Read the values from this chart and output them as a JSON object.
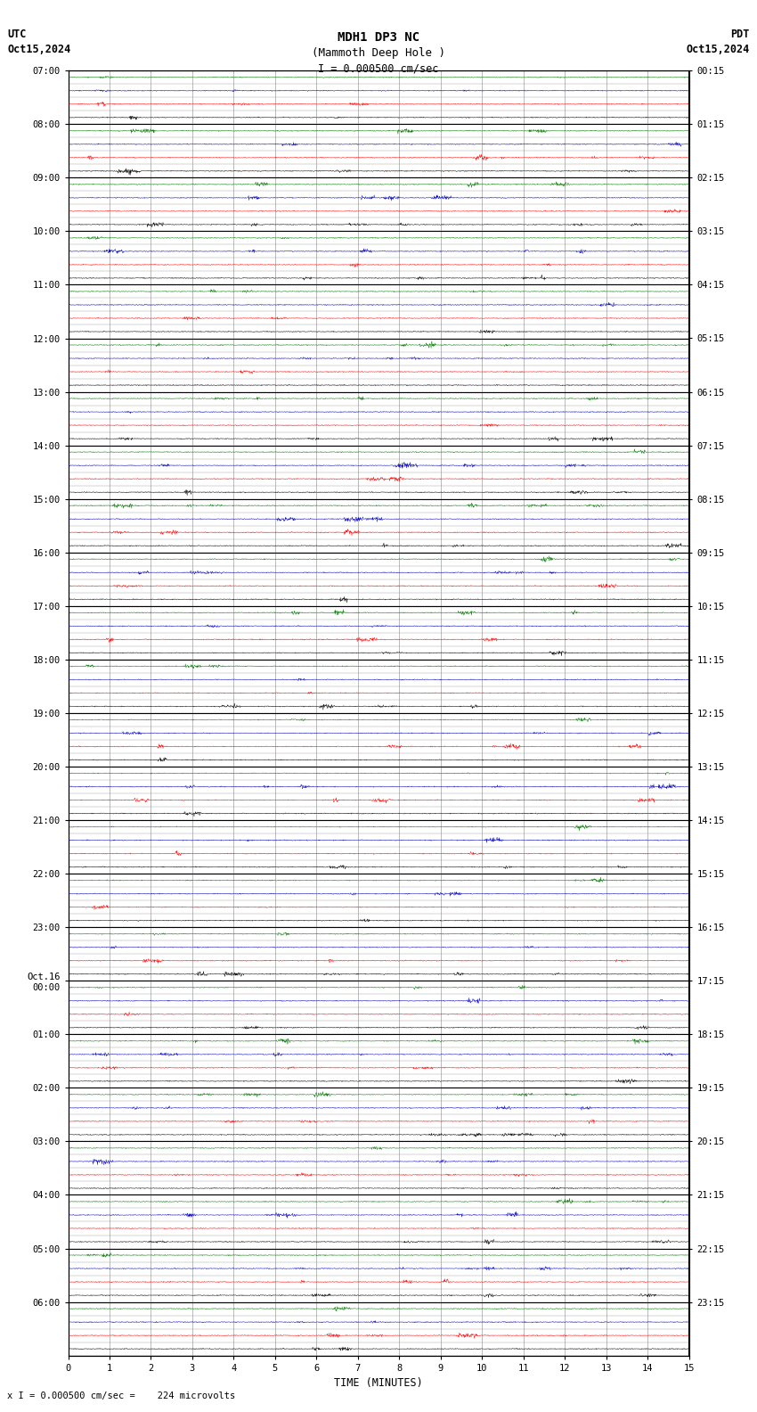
{
  "title_line1": "MDH1 DP3 NC",
  "title_line2": "(Mammoth Deep Hole )",
  "scale_label": "I = 0.000500 cm/sec",
  "left_header": "UTC",
  "left_date": "Oct15,2024",
  "right_header": "PDT",
  "right_date": "Oct15,2024",
  "bottom_label": "TIME (MINUTES)",
  "bottom_note": "x I = 0.000500 cm/sec =    224 microvolts",
  "xmin": 0,
  "xmax": 15,
  "background_color": "#ffffff",
  "grid_color": "#888888",
  "hour_line_color": "#000000",
  "trace_colors": [
    "#000000",
    "#ff0000",
    "#0000bb",
    "#007700"
  ],
  "left_ytick_labels": [
    "07:00",
    "08:00",
    "09:00",
    "10:00",
    "11:00",
    "12:00",
    "13:00",
    "14:00",
    "15:00",
    "16:00",
    "17:00",
    "18:00",
    "19:00",
    "20:00",
    "21:00",
    "22:00",
    "23:00",
    "Oct.16\n00:00",
    "01:00",
    "02:00",
    "03:00",
    "04:00",
    "05:00",
    "06:00"
  ],
  "right_ytick_labels": [
    "00:15",
    "01:15",
    "02:15",
    "03:15",
    "04:15",
    "05:15",
    "06:15",
    "07:15",
    "08:15",
    "09:15",
    "10:15",
    "11:15",
    "12:15",
    "13:15",
    "14:15",
    "15:15",
    "16:15",
    "17:15",
    "18:15",
    "19:15",
    "20:15",
    "21:15",
    "22:15",
    "23:15"
  ],
  "num_hour_blocks": 24,
  "traces_per_hour": 4,
  "total_trace_rows": 96,
  "fig_width": 8.5,
  "fig_height": 15.84,
  "dpi": 100,
  "noise_amplitude": 0.06,
  "trace_linewidth": 0.35
}
